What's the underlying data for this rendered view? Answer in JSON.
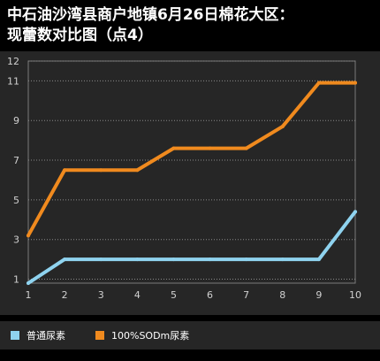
{
  "title_line1": "中石油沙湾县商户地镇6月26日棉花大区：",
  "title_line2": "现蕾数对比图（点4）",
  "chart_data": {
    "type": "line",
    "x": [
      1,
      2,
      3,
      4,
      5,
      6,
      7,
      8,
      9,
      10
    ],
    "series": [
      {
        "name": "普通尿素",
        "color": "#8fd3ef",
        "values": [
          0.8,
          2.0,
          2.0,
          2.0,
          2.0,
          2.0,
          2.0,
          2.0,
          2.0,
          4.4
        ]
      },
      {
        "name": "100%SODm尿素",
        "color": "#f08a1e",
        "values": [
          3.2,
          6.5,
          6.5,
          6.5,
          7.6,
          7.6,
          7.6,
          8.7,
          10.9,
          10.9
        ]
      }
    ],
    "yticks": [
      1,
      3,
      5,
      7,
      9,
      11,
      12
    ],
    "xticks": [
      1,
      2,
      3,
      4,
      5,
      6,
      7,
      8,
      9,
      10
    ],
    "xlim": [
      1,
      10
    ],
    "ylim": [
      0.8,
      12
    ],
    "grid": true,
    "legend_position": "bottom"
  }
}
